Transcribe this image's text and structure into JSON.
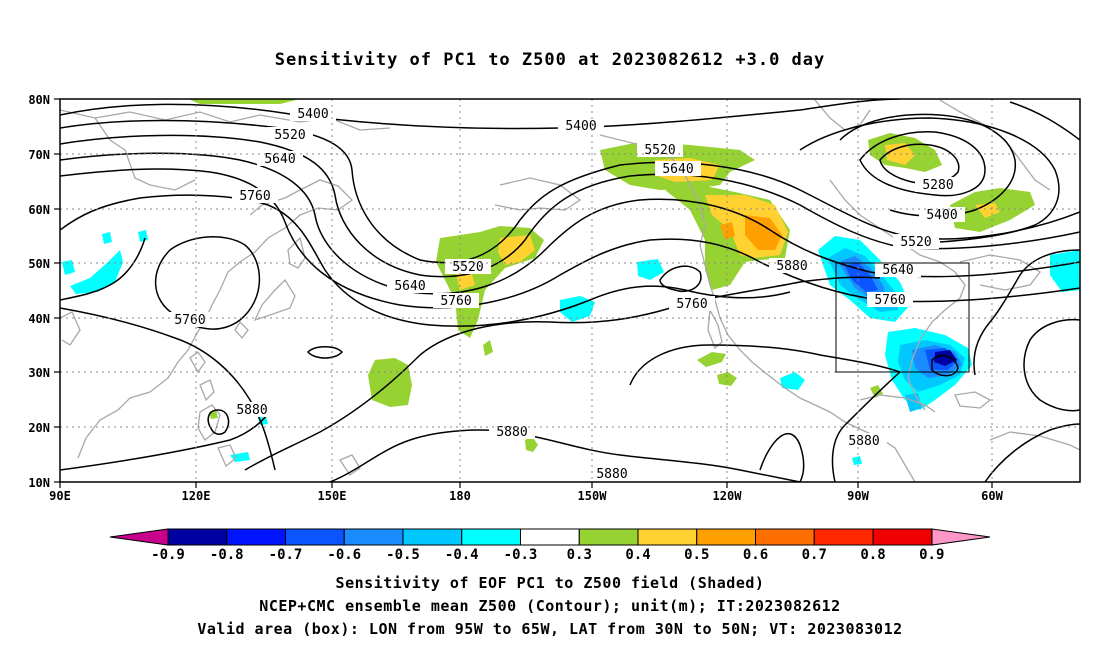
{
  "title": "Sensitivity of PC1 to Z500 at 2023082612 +3.0 day",
  "lat_labels": [
    "80N",
    "70N",
    "60N",
    "50N",
    "40N",
    "30N",
    "20N",
    "10N"
  ],
  "lon_labels": [
    "90E",
    "120E",
    "150E",
    "180",
    "150W",
    "120W",
    "90W",
    "60W"
  ],
  "contour_labels": [
    "5400",
    "5400",
    "5520",
    "5640",
    "5760",
    "5760",
    "5520",
    "5640",
    "5520",
    "5640",
    "5760",
    "5880",
    "5880",
    "5880",
    "5760",
    "5880",
    "5280",
    "5400",
    "5520",
    "5640",
    "5760",
    "5880"
  ],
  "colorbar": {
    "labels": [
      "-0.9",
      "-0.8",
      "-0.7",
      "-0.6",
      "-0.5",
      "-0.4",
      "-0.3",
      "0.3",
      "0.4",
      "0.5",
      "0.6",
      "0.7",
      "0.8",
      "0.9"
    ],
    "colors": [
      "#0000a0",
      "#0014ff",
      "#0a55ff",
      "#1a8cff",
      "#00c8ff",
      "#00ffff",
      "#ffffff",
      "#96d232",
      "#ffd232",
      "#ffa000",
      "#ff6e00",
      "#ff2800",
      "#f00000"
    ],
    "low_end_color": "#c8008c",
    "high_end_color": "#ff96c8"
  },
  "captions": [
    "Sensitivity of EOF PC1 to Z500 field (Shaded)",
    "NCEP+CMC ensemble mean Z500 (Contour); unit(m); IT:2023082612",
    "Valid area (box): LON from 95W to 65W, LAT from 30N to 50N; VT: 2023083012"
  ]
}
